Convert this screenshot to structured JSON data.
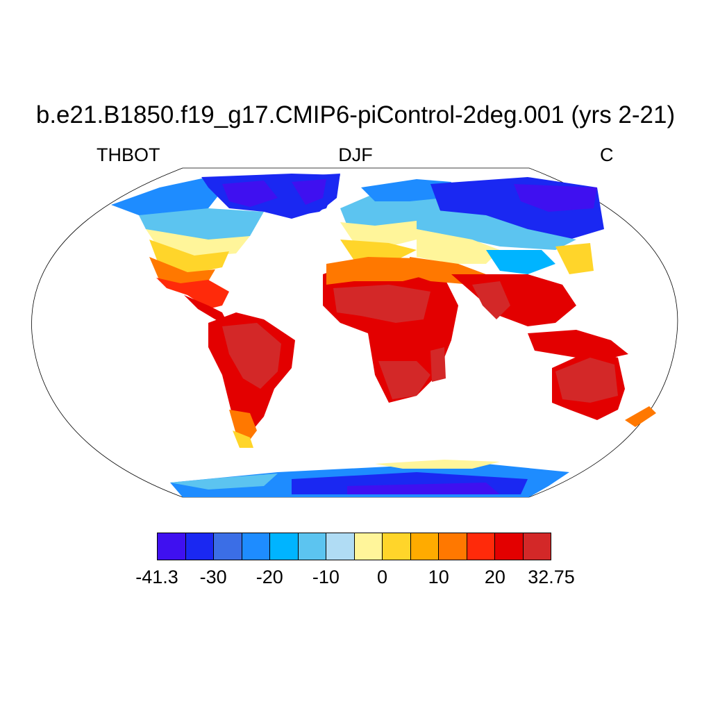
{
  "title": "b.e21.B1850.f19_g17.CMIP6-piControl-2deg.001 (yrs 2-21)",
  "variable": "THBOT",
  "season": "DJF",
  "units": "C",
  "colorbar": {
    "colors": [
      "#3f10f0",
      "#1a28f2",
      "#3b6ee6",
      "#1e8cff",
      "#00b4ff",
      "#5cc4f0",
      "#b0dcf4",
      "#fff59a",
      "#ffd52a",
      "#ffab00",
      "#ff7800",
      "#ff2a0a",
      "#e30000",
      "#d32828"
    ],
    "tick_labels": [
      "-41.3",
      "-30",
      "-20",
      "-10",
      "0",
      "10",
      "20",
      "32.75"
    ]
  },
  "chart_data": {
    "type": "heatmap",
    "title": "b.e21.B1850.f19_g17.CMIP6-piControl-2deg.001 (yrs 2-21)",
    "variable": "THBOT",
    "season": "DJF",
    "units": "C",
    "projection": "Robinson",
    "range": [
      -41.3,
      32.75
    ],
    "levels": [
      -41.3,
      -35,
      -30,
      -25,
      -20,
      -15,
      -10,
      -5,
      0,
      5,
      10,
      15,
      20,
      25,
      32.75
    ],
    "land_only": true
  }
}
